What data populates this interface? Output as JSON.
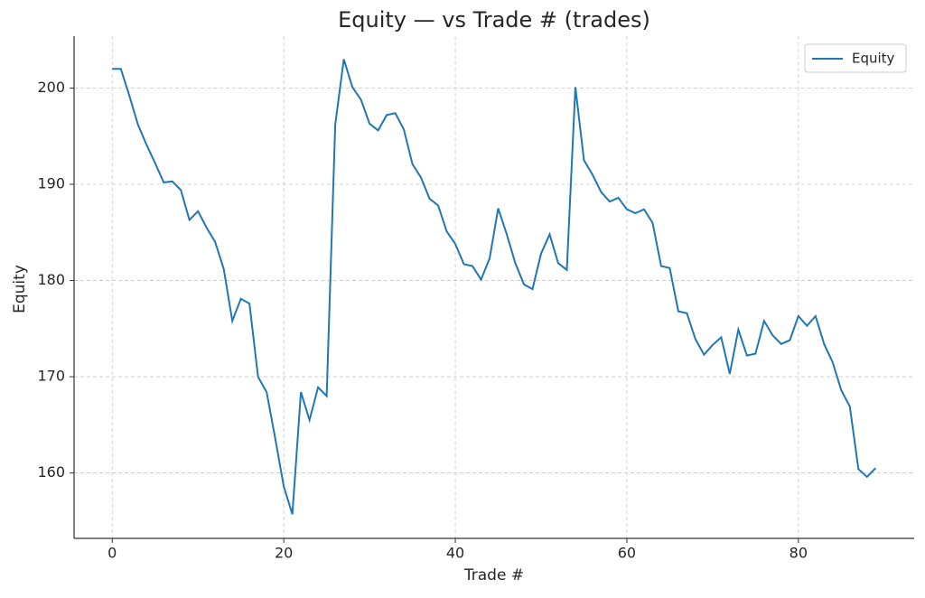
{
  "chart_data": {
    "type": "line",
    "title": "Equity — vs Trade # (trades)",
    "x_label": "Trade #",
    "y_label": "Equity",
    "x": [
      0,
      1,
      2,
      3,
      4,
      5,
      6,
      7,
      8,
      9,
      10,
      11,
      12,
      13,
      14,
      15,
      16,
      17,
      18,
      19,
      20,
      21,
      22,
      23,
      24,
      25,
      26,
      27,
      28,
      29,
      30,
      31,
      32,
      33,
      34,
      35,
      36,
      37,
      38,
      39,
      40,
      41,
      42,
      43,
      44,
      45,
      46,
      47,
      48,
      49,
      50,
      51,
      52,
      53,
      54,
      55,
      56,
      57,
      58,
      59,
      60,
      61,
      62,
      63,
      64,
      65,
      66,
      67,
      68,
      69,
      70,
      71,
      72,
      73,
      74,
      75,
      76,
      77,
      78,
      79,
      80,
      81,
      82,
      83,
      84,
      85,
      86,
      87,
      88,
      89
    ],
    "series": [
      {
        "name": "Equity",
        "color": "#1f77b4",
        "values": [
          202.0,
          202.0,
          199.2,
          196.2,
          194.1,
          192.2,
          190.2,
          190.3,
          189.4,
          186.3,
          187.2,
          185.5,
          184.0,
          181.2,
          175.8,
          178.1,
          177.6,
          170.0,
          168.4,
          163.6,
          158.6,
          155.7,
          168.4,
          165.5,
          168.9,
          168.0,
          196.2,
          203.0,
          200.1,
          198.8,
          196.3,
          195.6,
          197.2,
          197.4,
          195.7,
          192.1,
          190.7,
          188.5,
          187.8,
          185.1,
          183.8,
          181.7,
          181.5,
          180.1,
          182.3,
          187.5,
          184.8,
          181.8,
          179.6,
          179.1,
          182.8,
          184.8,
          181.8,
          181.1,
          200.1,
          192.5,
          191.0,
          189.2,
          188.2,
          188.6,
          187.4,
          187.0,
          187.4,
          186.0,
          181.5,
          181.3,
          176.8,
          176.6,
          173.9,
          172.3,
          173.3,
          174.1,
          170.3,
          174.9,
          172.2,
          172.4,
          175.8,
          174.3,
          173.4,
          173.8,
          176.3,
          175.3,
          176.3,
          173.4,
          171.5,
          168.6,
          166.9,
          160.4,
          159.6,
          160.5
        ]
      }
    ],
    "xlim": [
      -4.45,
      93.5
    ],
    "ylim": [
      153.2,
      205.4
    ],
    "xticks": [
      0,
      20,
      40,
      60,
      80
    ],
    "yticks": [
      160,
      170,
      180,
      190,
      200
    ],
    "grid": true,
    "legend": "upper right"
  }
}
